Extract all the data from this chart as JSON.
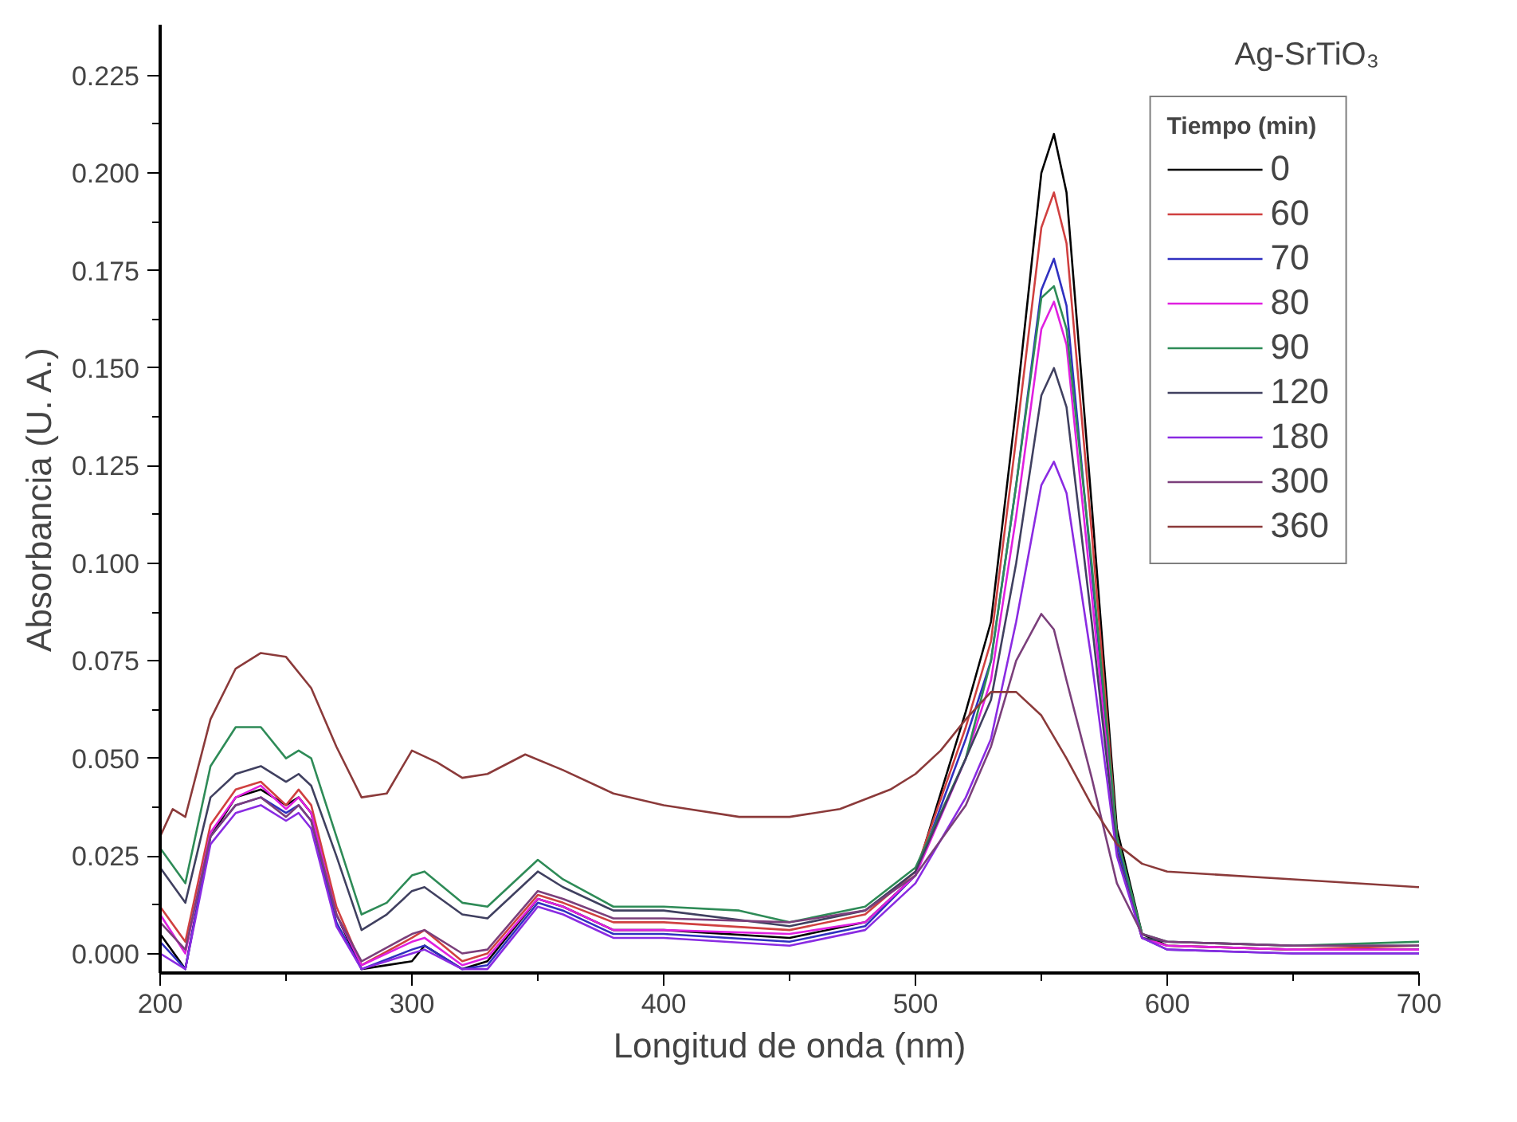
{
  "chart_data": {
    "type": "line",
    "xlabel": "Longitud de onda (nm)",
    "ylabel": "Absorbancia (U. A.)",
    "legend_title": "Tiempo (min)",
    "annotations": [
      "Ag-SrTiO₃"
    ],
    "legend": "top right",
    "grid": false,
    "marker": "none",
    "line_style": "solid",
    "xlim": [
      200,
      700
    ],
    "ylim": [
      -0.005,
      0.238
    ],
    "xticks": [
      200,
      300,
      400,
      500,
      600,
      700
    ],
    "yticks": [
      {
        "value": 0,
        "label": "0.000"
      },
      {
        "value": 0.025,
        "label": "0.025"
      },
      {
        "value": 0.05,
        "label": "0.050"
      },
      {
        "value": 0.075,
        "label": "0.075"
      },
      {
        "value": 0.1,
        "label": "0.100"
      },
      {
        "value": 0.125,
        "label": "0.125"
      },
      {
        "value": 0.15,
        "label": "0.150"
      },
      {
        "value": 0.175,
        "label": "0.175"
      },
      {
        "value": 0.2,
        "label": "0.200"
      },
      {
        "value": 0.225,
        "label": "0.225"
      }
    ],
    "series": [
      {
        "name": "0",
        "color": "#000000",
        "x": [
          200,
          210,
          220,
          230,
          240,
          250,
          255,
          260,
          270,
          280,
          300,
          305,
          320,
          330,
          350,
          360,
          380,
          400,
          450,
          480,
          500,
          520,
          530,
          540,
          550,
          555,
          560,
          570,
          580,
          590,
          600,
          650,
          700
        ],
        "values": [
          0.005,
          -0.004,
          0.03,
          0.04,
          0.042,
          0.038,
          0.04,
          0.036,
          0.01,
          -0.004,
          -0.002,
          0.002,
          -0.004,
          -0.002,
          0.014,
          0.012,
          0.006,
          0.006,
          0.004,
          0.008,
          0.02,
          0.062,
          0.085,
          0.14,
          0.2,
          0.21,
          0.195,
          0.115,
          0.032,
          0.005,
          0.002,
          0.001,
          0.001
        ]
      },
      {
        "name": "60",
        "color": "#d04040",
        "x": [
          200,
          210,
          220,
          230,
          240,
          250,
          255,
          260,
          270,
          280,
          300,
          305,
          320,
          330,
          350,
          360,
          380,
          400,
          450,
          480,
          500,
          520,
          530,
          540,
          550,
          555,
          560,
          570,
          580,
          590,
          600,
          650,
          700
        ],
        "values": [
          0.012,
          0.003,
          0.033,
          0.042,
          0.044,
          0.038,
          0.042,
          0.038,
          0.012,
          -0.003,
          0.004,
          0.006,
          -0.002,
          0.0,
          0.015,
          0.013,
          0.008,
          0.008,
          0.006,
          0.01,
          0.021,
          0.058,
          0.08,
          0.132,
          0.186,
          0.195,
          0.182,
          0.108,
          0.03,
          0.004,
          0.002,
          0.001,
          0.002
        ]
      },
      {
        "name": "70",
        "color": "#3030c0",
        "x": [
          200,
          210,
          220,
          230,
          240,
          250,
          255,
          260,
          270,
          280,
          300,
          305,
          320,
          330,
          350,
          360,
          380,
          400,
          450,
          480,
          500,
          520,
          530,
          540,
          550,
          555,
          560,
          570,
          580,
          590,
          600,
          650,
          700
        ],
        "values": [
          0.003,
          -0.004,
          0.03,
          0.038,
          0.04,
          0.036,
          0.038,
          0.034,
          0.008,
          -0.004,
          0.001,
          0.002,
          -0.004,
          -0.003,
          0.013,
          0.011,
          0.005,
          0.005,
          0.003,
          0.007,
          0.02,
          0.055,
          0.075,
          0.12,
          0.17,
          0.178,
          0.166,
          0.098,
          0.028,
          0.004,
          0.001,
          0.0,
          0.0
        ]
      },
      {
        "name": "80",
        "color": "#e020e0",
        "x": [
          200,
          210,
          220,
          230,
          240,
          250,
          255,
          260,
          270,
          280,
          300,
          305,
          320,
          330,
          350,
          360,
          380,
          400,
          450,
          480,
          500,
          520,
          530,
          540,
          550,
          555,
          560,
          570,
          580,
          590,
          600,
          650,
          700
        ],
        "values": [
          0.01,
          0.0,
          0.031,
          0.04,
          0.043,
          0.037,
          0.04,
          0.036,
          0.01,
          -0.003,
          0.003,
          0.004,
          -0.003,
          -0.001,
          0.014,
          0.012,
          0.006,
          0.006,
          0.005,
          0.008,
          0.02,
          0.05,
          0.07,
          0.112,
          0.16,
          0.167,
          0.156,
          0.092,
          0.026,
          0.004,
          0.002,
          0.001,
          0.001
        ]
      },
      {
        "name": "90",
        "color": "#2e8b57",
        "x": [
          200,
          210,
          220,
          230,
          240,
          250,
          255,
          260,
          270,
          280,
          290,
          300,
          305,
          320,
          330,
          350,
          360,
          380,
          400,
          430,
          450,
          480,
          500,
          520,
          530,
          540,
          550,
          555,
          560,
          570,
          580,
          590,
          600,
          650,
          700
        ],
        "values": [
          0.027,
          0.018,
          0.048,
          0.058,
          0.058,
          0.05,
          0.052,
          0.05,
          0.03,
          0.01,
          0.013,
          0.02,
          0.021,
          0.013,
          0.012,
          0.024,
          0.019,
          0.012,
          0.012,
          0.011,
          0.008,
          0.012,
          0.022,
          0.05,
          0.075,
          0.12,
          0.168,
          0.171,
          0.16,
          0.1,
          0.03,
          0.005,
          0.003,
          0.002,
          0.003
        ]
      },
      {
        "name": "120",
        "color": "#404060",
        "x": [
          200,
          210,
          220,
          230,
          240,
          250,
          255,
          260,
          270,
          280,
          290,
          300,
          305,
          320,
          330,
          350,
          360,
          380,
          400,
          450,
          480,
          500,
          520,
          530,
          540,
          550,
          555,
          560,
          570,
          580,
          590,
          600,
          650,
          700
        ],
        "values": [
          0.022,
          0.013,
          0.04,
          0.046,
          0.048,
          0.044,
          0.046,
          0.043,
          0.025,
          0.006,
          0.01,
          0.016,
          0.017,
          0.01,
          0.009,
          0.021,
          0.017,
          0.011,
          0.011,
          0.007,
          0.011,
          0.021,
          0.05,
          0.065,
          0.1,
          0.143,
          0.15,
          0.14,
          0.085,
          0.026,
          0.004,
          0.003,
          0.002,
          0.002
        ]
      },
      {
        "name": "180",
        "color": "#8a2be2",
        "x": [
          200,
          210,
          220,
          230,
          240,
          250,
          255,
          260,
          270,
          280,
          300,
          305,
          320,
          330,
          350,
          360,
          380,
          400,
          450,
          480,
          500,
          520,
          530,
          540,
          550,
          555,
          560,
          570,
          580,
          590,
          600,
          650,
          700
        ],
        "values": [
          0.0,
          -0.004,
          0.028,
          0.036,
          0.038,
          0.034,
          0.036,
          0.032,
          0.007,
          -0.004,
          0.0,
          0.001,
          -0.004,
          -0.004,
          0.012,
          0.01,
          0.004,
          0.004,
          0.002,
          0.006,
          0.018,
          0.04,
          0.055,
          0.085,
          0.12,
          0.126,
          0.118,
          0.075,
          0.025,
          0.004,
          0.001,
          0.0,
          0.0
        ]
      },
      {
        "name": "300",
        "color": "#7b3f7b",
        "x": [
          200,
          210,
          220,
          230,
          240,
          250,
          255,
          260,
          270,
          280,
          300,
          305,
          320,
          330,
          350,
          360,
          380,
          400,
          450,
          480,
          500,
          520,
          530,
          540,
          550,
          555,
          560,
          570,
          580,
          590,
          600,
          650,
          700
        ],
        "values": [
          0.008,
          0.001,
          0.03,
          0.038,
          0.04,
          0.035,
          0.038,
          0.034,
          0.01,
          -0.002,
          0.005,
          0.006,
          0.0,
          0.001,
          0.016,
          0.014,
          0.009,
          0.009,
          0.008,
          0.011,
          0.02,
          0.038,
          0.053,
          0.075,
          0.087,
          0.083,
          0.07,
          0.045,
          0.018,
          0.005,
          0.003,
          0.002,
          0.002
        ]
      },
      {
        "name": "360",
        "color": "#8b3a3a",
        "x": [
          200,
          205,
          210,
          220,
          230,
          240,
          250,
          260,
          270,
          280,
          290,
          300,
          310,
          320,
          330,
          345,
          360,
          380,
          400,
          430,
          450,
          470,
          490,
          500,
          510,
          520,
          530,
          540,
          550,
          560,
          570,
          580,
          590,
          600,
          650,
          700
        ],
        "values": [
          0.03,
          0.037,
          0.035,
          0.06,
          0.073,
          0.077,
          0.076,
          0.068,
          0.053,
          0.04,
          0.041,
          0.052,
          0.049,
          0.045,
          0.046,
          0.051,
          0.047,
          0.041,
          0.038,
          0.035,
          0.035,
          0.037,
          0.042,
          0.046,
          0.052,
          0.06,
          0.067,
          0.067,
          0.061,
          0.05,
          0.038,
          0.028,
          0.023,
          0.021,
          0.019,
          0.017
        ]
      }
    ]
  }
}
